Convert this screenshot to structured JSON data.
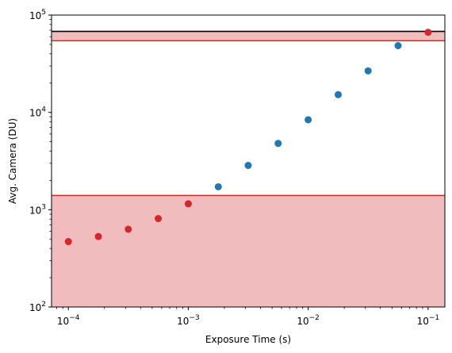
{
  "chart_data": {
    "type": "scatter",
    "xlabel": "Exposure Time (s)",
    "ylabel": "Avg. Camera (DU)",
    "xscale": "log",
    "yscale": "log",
    "xlim": [
      7.24e-05,
      0.138
    ],
    "ylim": [
      100,
      100000
    ],
    "x_ticks": [
      {
        "value": 0.0001,
        "mantissa": "10",
        "exponent": "−4"
      },
      {
        "value": 0.001,
        "mantissa": "10",
        "exponent": "−3"
      },
      {
        "value": 0.01,
        "mantissa": "10",
        "exponent": "−2"
      },
      {
        "value": 0.1,
        "mantissa": "10",
        "exponent": "−1"
      }
    ],
    "y_ticks": [
      {
        "value": 100,
        "mantissa": "10",
        "exponent": "2"
      },
      {
        "value": 1000,
        "mantissa": "10",
        "exponent": "3"
      },
      {
        "value": 10000,
        "mantissa": "10",
        "exponent": "4"
      },
      {
        "value": 100000,
        "mantissa": "10",
        "exponent": "5"
      }
    ],
    "grid": false,
    "colors": {
      "in_range": "#1f77b4",
      "out_of_range": "#d62728",
      "band_fill": "#f0bcbe",
      "limit_line": "#000000"
    },
    "shaded_bands": [
      {
        "y_from": 100,
        "y_to": 1400
      },
      {
        "y_from": 54500,
        "y_to": 68000
      }
    ],
    "band_edges": [
      1400,
      54500
    ],
    "hlines": [
      68000
    ],
    "series": [
      {
        "status": "out_of_range",
        "x": [
          0.0001,
          0.000178,
          0.000316,
          0.000562,
          0.001,
          0.1
        ],
        "y": [
          470,
          530,
          630,
          810,
          1150,
          66500
        ]
      },
      {
        "status": "in_range",
        "x": [
          0.00178,
          0.00316,
          0.00562,
          0.01,
          0.0178,
          0.0316,
          0.0562
        ],
        "y": [
          1720,
          2850,
          4800,
          8400,
          15200,
          26700,
          48500
        ]
      }
    ]
  }
}
